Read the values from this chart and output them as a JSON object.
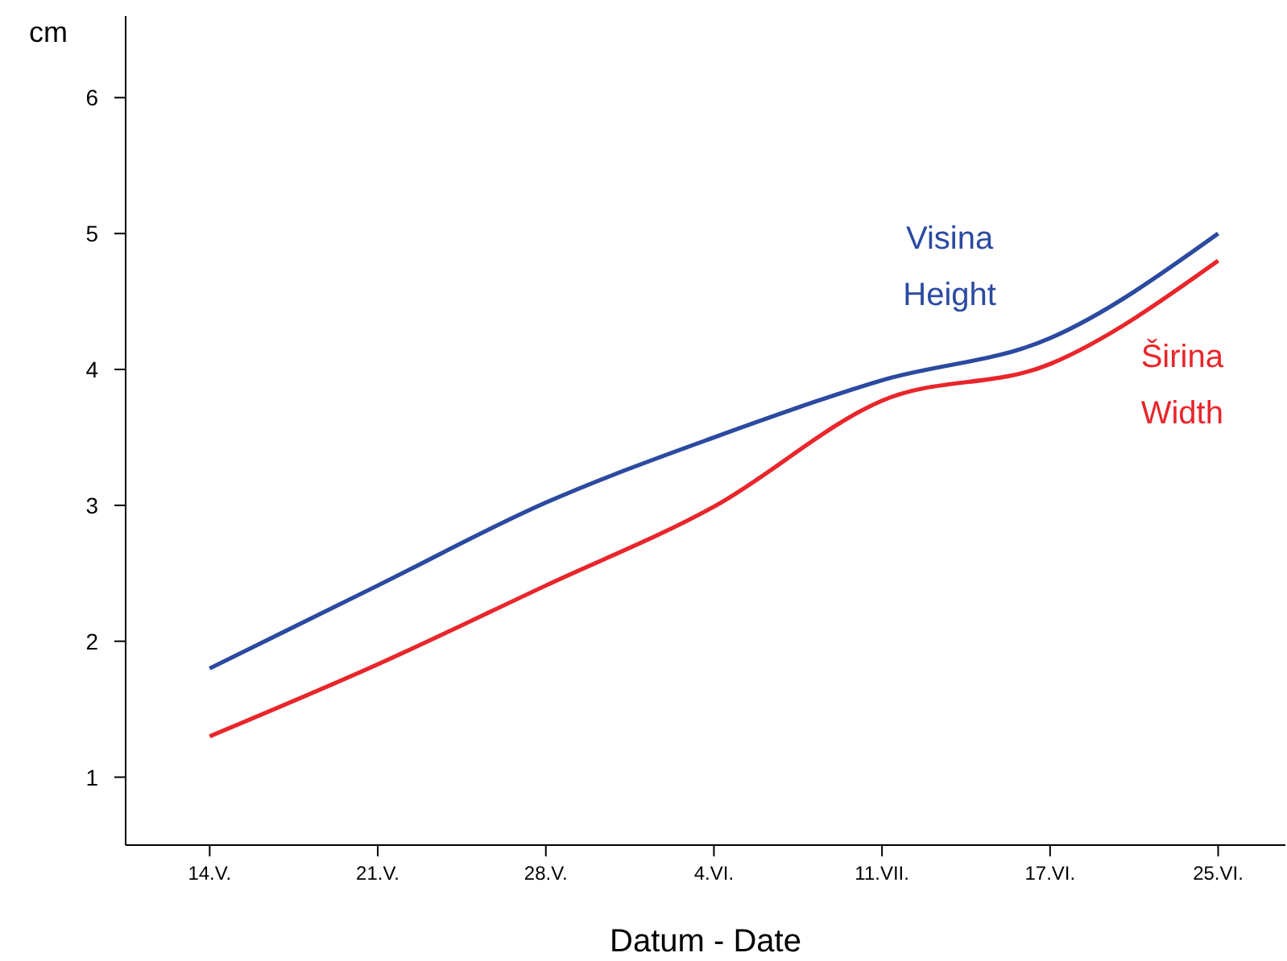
{
  "chart_data": {
    "type": "line",
    "xlabel": "Datum - Date",
    "ylabel": "cm",
    "categories": [
      "14.V.",
      "21.V.",
      "28.V.",
      "4.VI.",
      "11.VII.",
      "17.VI.",
      "25.VI."
    ],
    "ylim": [
      0.5,
      6.6
    ],
    "yticks": [
      1,
      2,
      3,
      4,
      5,
      6
    ],
    "grid": false,
    "legend": false,
    "marker": "none",
    "line_style": "solid",
    "series": [
      {
        "name": "Visina Height",
        "color": "#2b4aa0",
        "values": [
          1.8,
          2.41,
          3.02,
          3.5,
          3.92,
          4.23,
          5.0
        ]
      },
      {
        "name": "Širina Width",
        "color": "#e8262b",
        "values": [
          1.3,
          1.83,
          2.41,
          2.99,
          3.77,
          4.04,
          4.8
        ]
      }
    ]
  }
}
